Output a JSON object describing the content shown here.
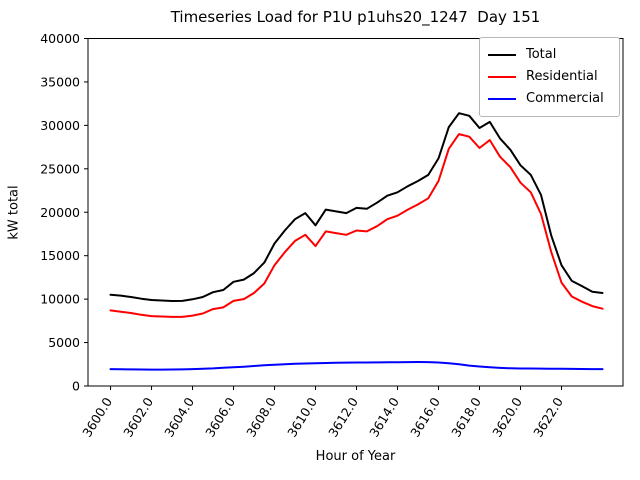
{
  "title": "Timeseries Load for P1U p1uhs20_1247  Day 151",
  "colors": {
    "total": "#000000",
    "residential": "#ff0000",
    "commercial": "#0000ff",
    "axes": "#000000",
    "legend_border": "#b7b7b7",
    "background": "#ffffff"
  },
  "legend": {
    "items": [
      {
        "label": "Total",
        "color": "#000000"
      },
      {
        "label": "Residential",
        "color": "#ff0000"
      },
      {
        "label": "Commercial",
        "color": "#0000ff"
      }
    ],
    "position": "upper right"
  },
  "chart_data": {
    "type": "line",
    "title": "Timeseries Load for P1U p1uhs20_1247  Day 151",
    "xlabel": "Hour of Year",
    "ylabel": "kW total",
    "xlim": [
      3598.9,
      3625.0
    ],
    "ylim": [
      0,
      40000
    ],
    "grid": false,
    "legend_position": "upper right",
    "x_ticks": [
      3600,
      3602,
      3604,
      3606,
      3608,
      3610,
      3612,
      3614,
      3616,
      3618,
      3620,
      3622
    ],
    "x_tick_labels": [
      "3600.0",
      "3602.0",
      "3604.0",
      "3606.0",
      "3608.0",
      "3610.0",
      "3612.0",
      "3614.0",
      "3616.0",
      "3618.0",
      "3620.0",
      "3622.0"
    ],
    "x_tick_rotation_deg": 60,
    "y_ticks": [
      0,
      5000,
      10000,
      15000,
      20000,
      25000,
      30000,
      35000,
      40000
    ],
    "x": [
      3600,
      3600.5,
      3601,
      3601.5,
      3602,
      3602.5,
      3603,
      3603.5,
      3604,
      3604.5,
      3605,
      3605.5,
      3606,
      3606.5,
      3607,
      3607.5,
      3608,
      3608.5,
      3609,
      3609.5,
      3610,
      3610.5,
      3611,
      3611.5,
      3612,
      3612.5,
      3613,
      3613.5,
      3614,
      3614.5,
      3615,
      3615.5,
      3616,
      3616.5,
      3617,
      3617.5,
      3618,
      3618.5,
      3619,
      3619.5,
      3620,
      3620.5,
      3621,
      3621.5,
      3622,
      3622.5,
      3623,
      3623.5,
      3624
    ],
    "series": [
      {
        "name": "Total",
        "color": "#000000",
        "values": [
          10500,
          10400,
          10250,
          10050,
          9900,
          9840,
          9780,
          9800,
          9980,
          10250,
          10800,
          11050,
          12000,
          12250,
          13000,
          14200,
          16400,
          17900,
          19200,
          19900,
          18500,
          20300,
          20100,
          19900,
          20500,
          20400,
          21100,
          21900,
          22300,
          23000,
          23600,
          24300,
          26200,
          29800,
          31400,
          31100,
          29700,
          30400,
          28500,
          27200,
          25400,
          24300,
          22000,
          17300,
          13900,
          12100,
          11500,
          10850,
          10700
        ]
      },
      {
        "name": "Residential",
        "color": "#ff0000",
        "values": [
          8700,
          8550,
          8400,
          8200,
          8050,
          8000,
          7950,
          7950,
          8100,
          8350,
          8850,
          9050,
          9800,
          10000,
          10700,
          11800,
          13900,
          15400,
          16700,
          17400,
          16100,
          17800,
          17600,
          17400,
          17900,
          17800,
          18400,
          19200,
          19600,
          20300,
          20900,
          21600,
          23600,
          27300,
          29000,
          28700,
          27400,
          28300,
          26400,
          25200,
          23400,
          22300,
          19800,
          15400,
          11900,
          10300,
          9700,
          9200,
          8900
        ]
      },
      {
        "name": "Commercial",
        "color": "#0000ff",
        "values": [
          1950,
          1930,
          1910,
          1900,
          1890,
          1890,
          1900,
          1910,
          1950,
          1990,
          2030,
          2090,
          2150,
          2220,
          2300,
          2380,
          2450,
          2500,
          2550,
          2590,
          2620,
          2650,
          2670,
          2690,
          2700,
          2710,
          2720,
          2730,
          2740,
          2750,
          2760,
          2750,
          2700,
          2620,
          2500,
          2350,
          2250,
          2150,
          2080,
          2040,
          2020,
          2010,
          2000,
          1990,
          1980,
          1970,
          1960,
          1950,
          1940
        ]
      }
    ]
  }
}
